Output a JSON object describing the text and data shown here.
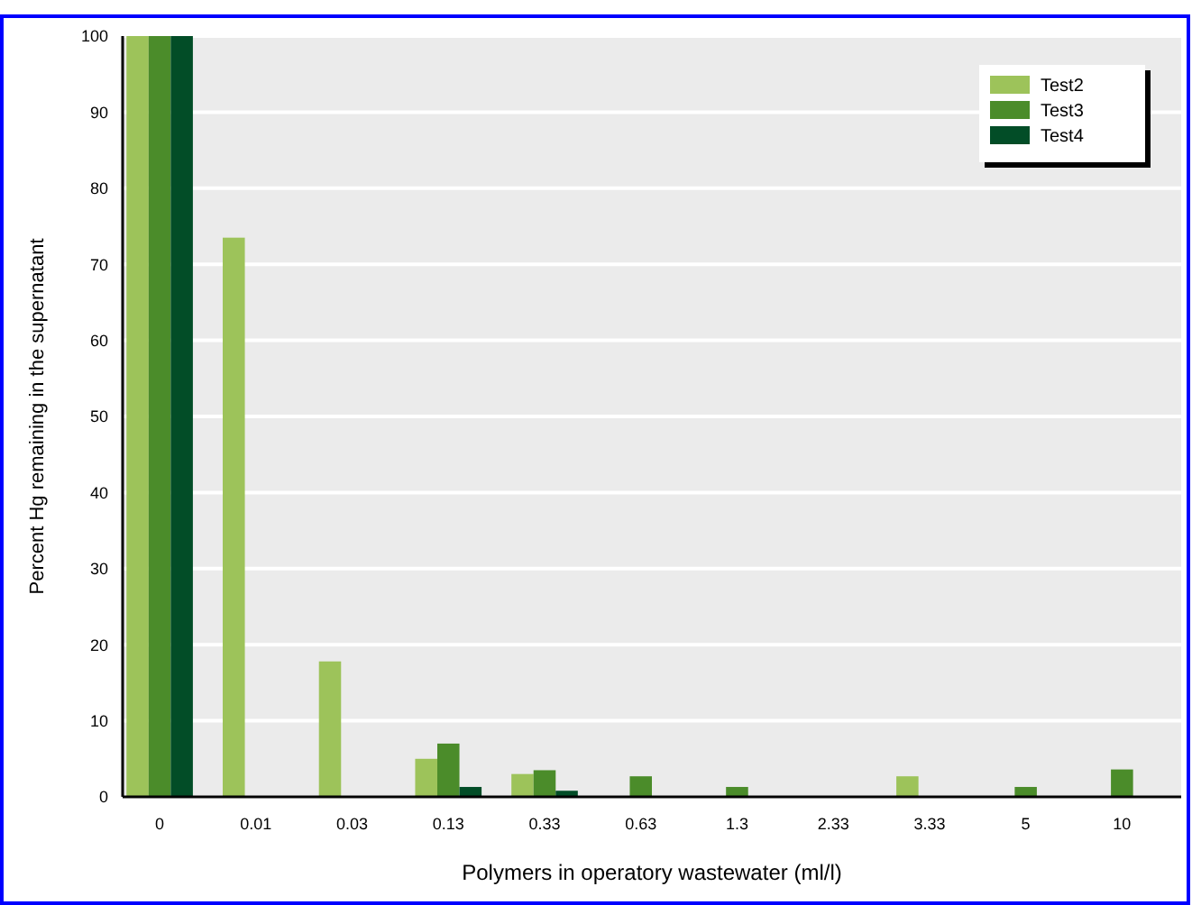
{
  "chart_data": {
    "type": "bar",
    "xlabel": "Polymers in operatory wastewater (ml/l)",
    "ylabel": "Percent Hg remaining in the supernatant",
    "categories": [
      "0",
      "0.01",
      "0.03",
      "0.13",
      "0.33",
      "0.63",
      "1.3",
      "2.33",
      "3.33",
      "5",
      "10"
    ],
    "series": [
      {
        "name": "Test2",
        "color": "#9dc35a",
        "values": [
          100,
          73.5,
          17.8,
          5,
          3,
          0,
          0,
          0,
          2.7,
          0,
          0
        ]
      },
      {
        "name": "Test3",
        "color": "#4b8c2a",
        "values": [
          100,
          0,
          0,
          7,
          3.5,
          2.7,
          1.3,
          0,
          0,
          1.3,
          3.6
        ]
      },
      {
        "name": "Test4",
        "color": "#024d27",
        "values": [
          100,
          0,
          0,
          1.3,
          0.8,
          0,
          0,
          0,
          0,
          0,
          0
        ]
      }
    ],
    "ylim": [
      0,
      100
    ],
    "yticks": [
      0,
      10,
      20,
      30,
      40,
      50,
      60,
      70,
      80,
      90,
      100
    ],
    "grid": "y",
    "legend": "top right"
  }
}
